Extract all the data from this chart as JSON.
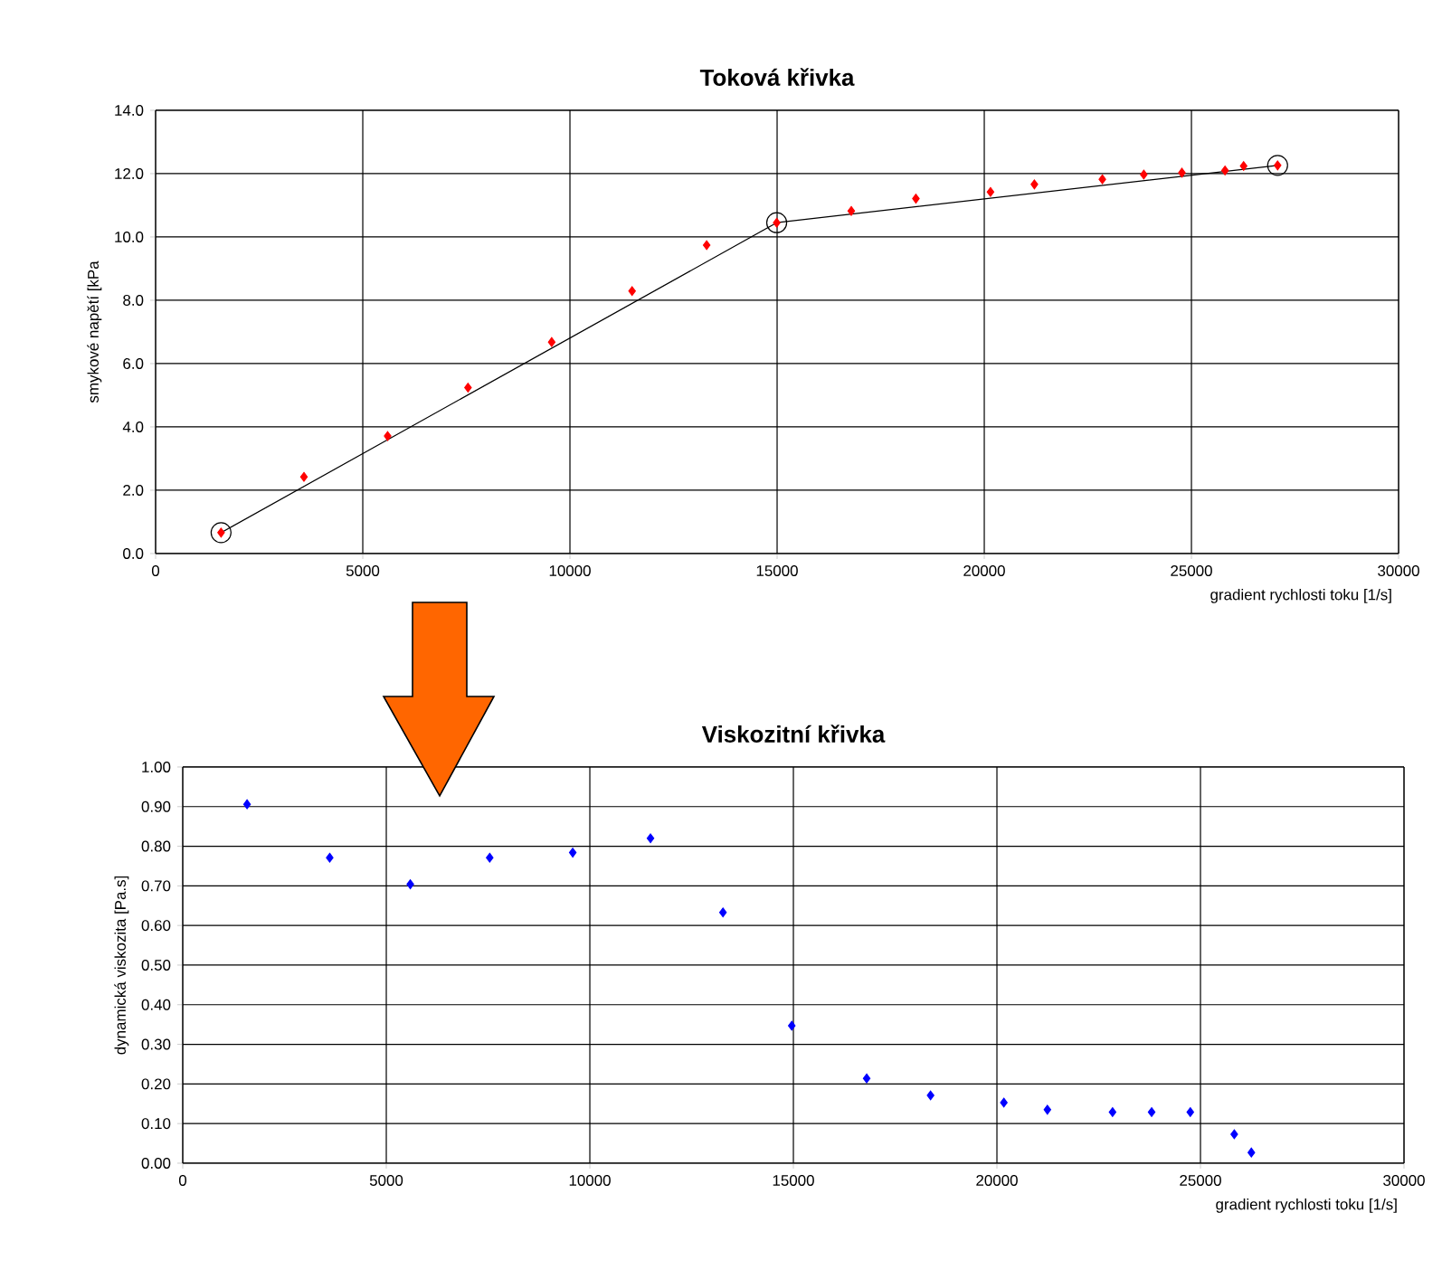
{
  "chart_data": [
    {
      "type": "scatter",
      "title": "Toková křivka",
      "xlabel": "gradient rychlosti toku [1/s]",
      "ylabel": "smykové napětí [kPa",
      "xlim": [
        0,
        30000
      ],
      "ylim": [
        0,
        14
      ],
      "xticks": [
        0,
        5000,
        10000,
        15000,
        20000,
        25000,
        30000
      ],
      "yticks": [
        {
          "value": 0,
          "label": "0.0"
        },
        {
          "value": 2,
          "label": "2.0"
        },
        {
          "value": 4,
          "label": "4.0"
        },
        {
          "value": 6,
          "label": "6.0"
        },
        {
          "value": 8,
          "label": "8.0"
        },
        {
          "value": 10,
          "label": "10.0"
        },
        {
          "value": 12,
          "label": "12.0"
        },
        {
          "value": 14,
          "label": "14.0"
        }
      ],
      "grid": true,
      "series": [
        {
          "marker": "diamond",
          "color": "#ff0000",
          "x": [
            1580,
            3580,
            5600,
            7540,
            9560,
            11500,
            13300,
            14990,
            16790,
            18350,
            20150,
            21210,
            22850,
            23850,
            24770,
            25810,
            26260,
            27080
          ],
          "values": [
            0.66,
            2.42,
            3.71,
            5.24,
            6.68,
            8.29,
            9.74,
            10.45,
            10.82,
            11.21,
            11.42,
            11.66,
            11.82,
            11.97,
            12.03,
            12.1,
            12.24,
            12.26
          ]
        },
        {
          "type": "line",
          "marker": "none",
          "color": "#000000",
          "x": [
            1580,
            14990,
            27080
          ],
          "values": [
            0.66,
            10.45,
            12.26
          ]
        },
        {
          "marker": "circle",
          "color": "#000000",
          "x": [
            1580,
            14990,
            27080
          ],
          "values": [
            0.66,
            10.45,
            12.26
          ]
        }
      ]
    },
    {
      "type": "scatter",
      "title": "Viskozitní křivka",
      "xlabel": "gradient rychlosti toku [1/s]",
      "ylabel": "dynamická viskozita [Pa.s]",
      "xlim": [
        0,
        30000
      ],
      "ylim": [
        0,
        1
      ],
      "xticks": [
        0,
        5000,
        10000,
        15000,
        20000,
        25000,
        30000
      ],
      "yticks": [
        {
          "value": 0,
          "label": "0.00"
        },
        {
          "value": 0.1,
          "label": "0.10"
        },
        {
          "value": 0.2,
          "label": "0.20"
        },
        {
          "value": 0.3,
          "label": "0.30"
        },
        {
          "value": 0.4,
          "label": "0.40"
        },
        {
          "value": 0.5,
          "label": "0.50"
        },
        {
          "value": 0.6,
          "label": "0.60"
        },
        {
          "value": 0.7,
          "label": "0.70"
        },
        {
          "value": 0.8,
          "label": "0.80"
        },
        {
          "value": 0.9,
          "label": "0.90"
        },
        {
          "value": 1,
          "label": "1.00"
        }
      ],
      "grid": true,
      "series": [
        {
          "marker": "diamond",
          "color": "#0000ff",
          "x": [
            1580,
            3610,
            5590,
            7540,
            9580,
            11490,
            13270,
            14960,
            16800,
            18370,
            20170,
            21240,
            22840,
            23800,
            24750,
            25830,
            26250
          ],
          "values": [
            0.906,
            0.771,
            0.704,
            0.771,
            0.784,
            0.82,
            0.633,
            0.347,
            0.214,
            0.171,
            0.153,
            0.135,
            0.129,
            0.129,
            0.129,
            0.073,
            0.027
          ]
        }
      ]
    }
  ]
}
